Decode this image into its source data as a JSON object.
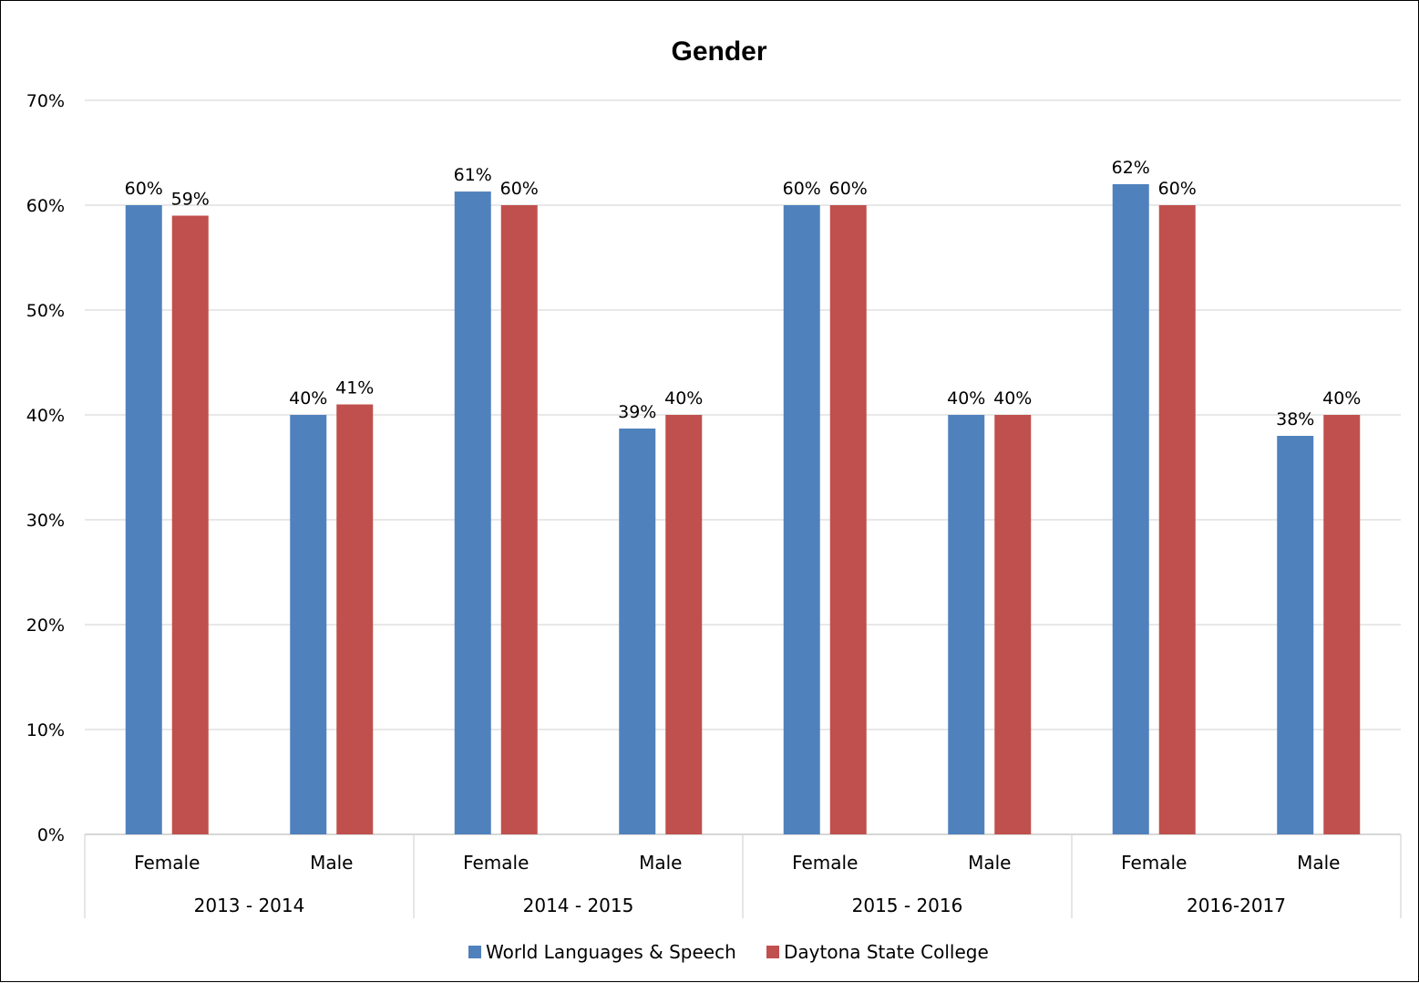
{
  "chart_data": {
    "type": "bar",
    "title": "Gender",
    "ylim": [
      0,
      0.7
    ],
    "yticks": [
      0,
      0.1,
      0.2,
      0.3,
      0.4,
      0.5,
      0.6,
      0.7
    ],
    "ytick_labels": [
      "0%",
      "10%",
      "20%",
      "30%",
      "40%",
      "50%",
      "60%",
      "70%"
    ],
    "y_format": "percent",
    "grid": true,
    "legend_position": "bottom",
    "groups": [
      "2013 - 2014",
      "2014 - 2015",
      "2015 - 2016",
      "2016-2017"
    ],
    "categories": [
      "Female",
      "Male",
      "Female",
      "Male",
      "Female",
      "Male",
      "Female",
      "Male"
    ],
    "series": [
      {
        "name": "World Languages & Speech",
        "color": "#4F81BD",
        "values": [
          0.6,
          0.4,
          0.613,
          0.387,
          0.6,
          0.4,
          0.62,
          0.38
        ],
        "labels": [
          "60%",
          "40%",
          "61%",
          "39%",
          "60%",
          "40%",
          "62%",
          "38%"
        ]
      },
      {
        "name": "Daytona State College",
        "color": "#C0504D",
        "values": [
          0.59,
          0.41,
          0.6,
          0.4,
          0.6,
          0.4,
          0.6,
          0.4
        ],
        "labels": [
          "59%",
          "41%",
          "60%",
          "40%",
          "60%",
          "40%",
          "60%",
          "40%"
        ]
      }
    ]
  }
}
